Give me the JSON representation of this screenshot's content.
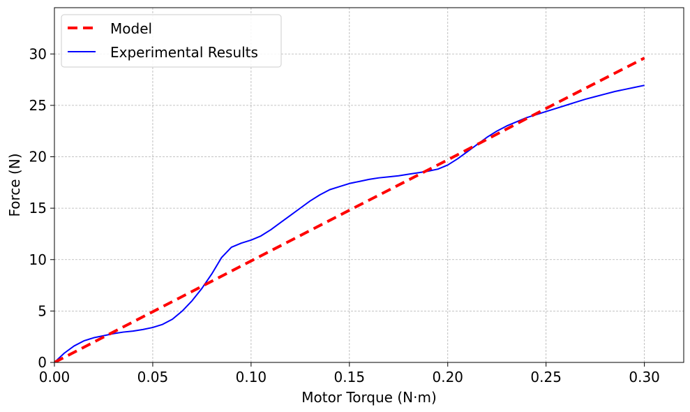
{
  "chart_data": {
    "type": "line",
    "title": "",
    "xlabel": "Motor Torque (N·m)",
    "ylabel": "Force (N)",
    "xlim": [
      0.0,
      0.32
    ],
    "ylim": [
      0,
      34.5
    ],
    "xticks": [
      0.0,
      0.05,
      0.1,
      0.15,
      0.2,
      0.25,
      0.3
    ],
    "xtick_labels": [
      "0.00",
      "0.05",
      "0.10",
      "0.15",
      "0.20",
      "0.25",
      "0.30"
    ],
    "yticks": [
      0,
      5,
      10,
      15,
      20,
      25,
      30
    ],
    "ytick_labels": [
      "0",
      "5",
      "10",
      "15",
      "20",
      "25",
      "30"
    ],
    "grid": true,
    "legend_position": "top-left",
    "series": [
      {
        "name": "Model",
        "color": "#ff0000",
        "style": "dashed",
        "x": [
          0.0,
          0.05,
          0.1,
          0.15,
          0.2,
          0.25,
          0.3
        ],
        "y": [
          0.0,
          4.93,
          9.87,
          14.8,
          19.7,
          24.7,
          29.6
        ]
      },
      {
        "name": "Experimental Results",
        "color": "#0000ff",
        "style": "solid",
        "x": [
          0.0,
          0.005,
          0.01,
          0.015,
          0.02,
          0.025,
          0.03,
          0.035,
          0.04,
          0.045,
          0.05,
          0.055,
          0.06,
          0.065,
          0.07,
          0.075,
          0.08,
          0.085,
          0.09,
          0.095,
          0.1,
          0.105,
          0.11,
          0.115,
          0.12,
          0.125,
          0.13,
          0.135,
          0.14,
          0.145,
          0.15,
          0.155,
          0.16,
          0.165,
          0.17,
          0.175,
          0.18,
          0.185,
          0.19,
          0.195,
          0.2,
          0.205,
          0.21,
          0.215,
          0.22,
          0.225,
          0.23,
          0.235,
          0.24,
          0.245,
          0.25,
          0.255,
          0.26,
          0.265,
          0.27,
          0.275,
          0.28,
          0.285,
          0.29,
          0.295,
          0.3
        ],
        "y": [
          0.0,
          0.9,
          1.6,
          2.1,
          2.4,
          2.6,
          2.8,
          2.95,
          3.05,
          3.2,
          3.4,
          3.7,
          4.2,
          5.0,
          6.0,
          7.2,
          8.6,
          10.2,
          11.2,
          11.6,
          11.9,
          12.3,
          12.9,
          13.6,
          14.3,
          15.0,
          15.7,
          16.3,
          16.8,
          17.1,
          17.4,
          17.6,
          17.8,
          17.95,
          18.05,
          18.15,
          18.3,
          18.45,
          18.6,
          18.8,
          19.2,
          19.8,
          20.5,
          21.2,
          21.9,
          22.5,
          23.0,
          23.4,
          23.8,
          24.1,
          24.4,
          24.7,
          25.0,
          25.3,
          25.6,
          25.85,
          26.1,
          26.35,
          26.55,
          26.75,
          26.95
        ]
      }
    ]
  }
}
